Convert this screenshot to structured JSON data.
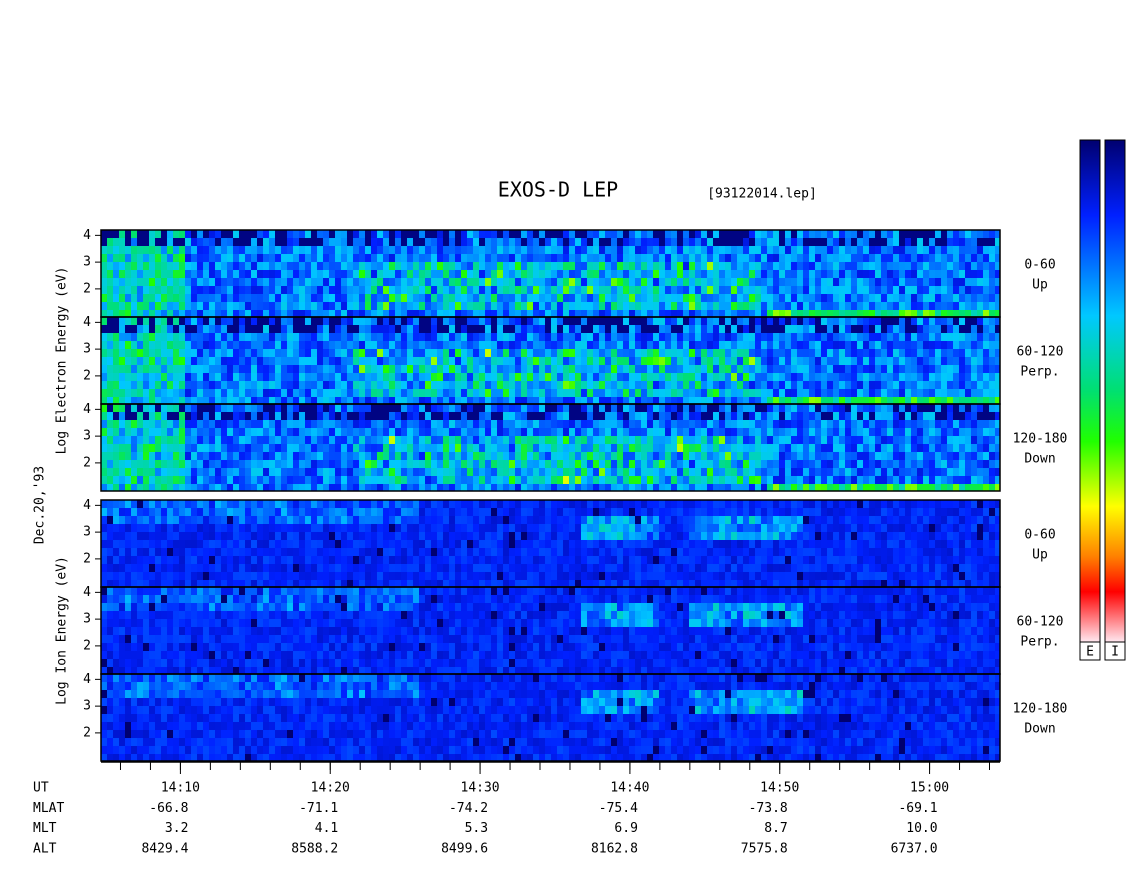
{
  "chart_data": {
    "type": "spectrogram",
    "title": "EXOS-D LEP",
    "file_label": "[93122014.lep]",
    "date_label": "Dec.20,'93",
    "xlim": [
      844.7,
      904.7
    ],
    "xticks": [
      {
        "value": 850,
        "label": "14:10"
      },
      {
        "value": 860,
        "label": "14:20"
      },
      {
        "value": 870,
        "label": "14:30"
      },
      {
        "value": 880,
        "label": "14:40"
      },
      {
        "value": 890,
        "label": "14:50"
      },
      {
        "value": 900,
        "label": "15:00"
      }
    ],
    "xminor_ticks": [
      846,
      848,
      850,
      852,
      854,
      856,
      858,
      860,
      862,
      864,
      866,
      868,
      870,
      872,
      874,
      876,
      878,
      880,
      882,
      884,
      886,
      888,
      890,
      892,
      894,
      896,
      898,
      900,
      902,
      904
    ],
    "groups": [
      {
        "label": "Log Electron Energy (eV)",
        "species": "electron",
        "panels": [
          {
            "ylim": [
              0.95,
              4.2
            ],
            "yticks": [
              2,
              3,
              4
            ],
            "angle_label": "0-60",
            "direction_label": "Up"
          },
          {
            "ylim": [
              0.95,
              4.2
            ],
            "yticks": [
              2,
              3,
              4
            ],
            "angle_label": "60-120",
            "direction_label": "Perp."
          },
          {
            "ylim": [
              0.95,
              4.2
            ],
            "yticks": [
              2,
              3,
              4
            ],
            "angle_label": "120-180",
            "direction_label": "Down"
          }
        ]
      },
      {
        "label": "Log Ion Energy (eV)",
        "species": "ion",
        "panels": [
          {
            "ylim": [
              0.95,
              4.2
            ],
            "yticks": [
              2,
              3,
              4
            ],
            "angle_label": "0-60",
            "direction_label": "Up"
          },
          {
            "ylim": [
              0.95,
              4.2
            ],
            "yticks": [
              2,
              3,
              4
            ],
            "angle_label": "60-120",
            "direction_label": "Perp."
          },
          {
            "ylim": [
              0.95,
              4.2
            ],
            "yticks": [
              2,
              3,
              4
            ],
            "angle_label": "120-180",
            "direction_label": "Down"
          }
        ]
      }
    ],
    "ephemeris": {
      "rows": [
        {
          "name": "UT"
        },
        {
          "name": "MLAT",
          "values": [
            "-66.8",
            "-71.1",
            "-74.2",
            "-75.4",
            "-73.8",
            "-69.1"
          ]
        },
        {
          "name": "MLT",
          "values": [
            "3.2",
            "4.1",
            "5.3",
            "6.9",
            "8.7",
            "10.0"
          ]
        },
        {
          "name": "ALT",
          "values": [
            "8429.4",
            "8588.2",
            "8499.6",
            "8162.8",
            "7575.8",
            "6737.0"
          ]
        }
      ]
    },
    "colorbars": [
      {
        "label": "E"
      },
      {
        "label": "I"
      }
    ]
  }
}
